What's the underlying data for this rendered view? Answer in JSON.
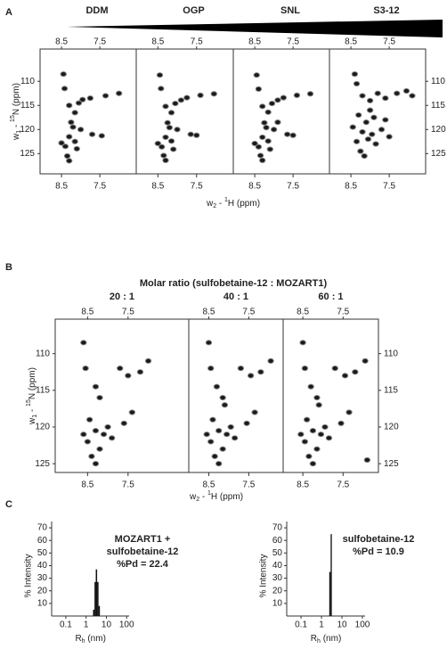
{
  "panels": {
    "a": {
      "label": "A",
      "x_label": [
        "w",
        "2",
        " - ",
        "1",
        "H (ppm)"
      ],
      "y_label": [
        "w",
        "1",
        " - ",
        "15",
        "N (ppm)"
      ]
    },
    "b": {
      "label": "B",
      "title": "Molar ratio (sulfobetaine-12 : MOZART1)",
      "x_label": [
        "w",
        "2",
        " - ",
        "1",
        "H (ppm)"
      ],
      "y_label": [
        "w",
        "1",
        " - ",
        "15",
        "N (ppm)"
      ]
    },
    "c": {
      "label": "C"
    }
  },
  "chart_data": [
    {
      "type": "scatter",
      "title": "DDM",
      "xlim": [
        9.06,
        6.55
      ],
      "ylim": [
        103.3,
        129.2
      ],
      "xticks": [
        8.5,
        7.5
      ],
      "yticks": [
        110,
        115,
        120,
        125
      ],
      "x": [
        8.45,
        8.42,
        8.3,
        8.15,
        8.05,
        7.75,
        7.95,
        7.35,
        7.0,
        8.25,
        8.0,
        8.3,
        8.15,
        7.45,
        7.7,
        8.4,
        8.1,
        8.3,
        8.35,
        8.5,
        8.2
      ],
      "y": [
        108.5,
        111.5,
        115,
        116.5,
        114.5,
        113.5,
        113.8,
        113,
        112.5,
        118.5,
        120,
        121.5,
        122.5,
        121.3,
        121,
        123.5,
        124,
        126.5,
        125.5,
        122.8,
        119.5
      ]
    },
    {
      "type": "scatter",
      "title": "OGP",
      "xlim": [
        9.06,
        6.55
      ],
      "ylim": [
        103.3,
        129.2
      ],
      "xticks": [
        8.5,
        7.5
      ],
      "x": [
        8.45,
        8.42,
        8.3,
        8.15,
        8.05,
        7.75,
        7.9,
        7.4,
        7.05,
        8.25,
        8.0,
        8.3,
        8.15,
        7.5,
        7.65,
        8.4,
        8.1,
        8.3,
        8.35,
        8.5,
        8.2
      ],
      "y": [
        108.7,
        111.5,
        115.2,
        116.5,
        114.6,
        113.4,
        113.9,
        112.9,
        112.6,
        118.6,
        120,
        121.6,
        122.4,
        121.2,
        121,
        123.6,
        124.1,
        126.4,
        125.4,
        122.9,
        119.6
      ]
    },
    {
      "type": "scatter",
      "title": "SNL",
      "xlim": [
        9.06,
        6.55
      ],
      "ylim": [
        103.3,
        129.2
      ],
      "xticks": [
        8.5,
        7.5
      ],
      "x": [
        8.45,
        8.4,
        8.3,
        8.15,
        8.05,
        7.75,
        7.9,
        7.4,
        7.05,
        8.25,
        8.0,
        8.3,
        8.15,
        7.5,
        7.65,
        8.4,
        8.1,
        8.3,
        8.35,
        8.5,
        8.2,
        7.9
      ],
      "y": [
        108.7,
        111.6,
        115.2,
        116.4,
        114.6,
        113.4,
        113.9,
        112.9,
        112.6,
        118.6,
        120,
        121.6,
        122.4,
        121.2,
        121,
        123.6,
        124.1,
        126.4,
        125.4,
        122.9,
        119.6,
        118.5
      ]
    },
    {
      "type": "scatter",
      "title": "S3-12",
      "xlim": [
        9.06,
        6.55
      ],
      "ylim": [
        103.3,
        129.2
      ],
      "xticks": [
        8.5,
        7.5
      ],
      "yticks": [
        110,
        115,
        120,
        125
      ],
      "x": [
        8.4,
        8.35,
        8.2,
        8.0,
        7.8,
        7.6,
        7.3,
        7.05,
        6.9,
        8.3,
        8.1,
        7.9,
        8.45,
        8.2,
        7.95,
        7.7,
        7.5,
        8.35,
        8.05,
        7.85,
        8.25,
        8.15,
        7.6,
        8.0
      ],
      "y": [
        108.5,
        110.5,
        113,
        114,
        112.5,
        113.5,
        112.5,
        112,
        113,
        117,
        118.5,
        117.5,
        119.5,
        120.5,
        121,
        120,
        121.5,
        122.5,
        122,
        123,
        124.5,
        125.5,
        118,
        116
      ]
    },
    {
      "type": "scatter",
      "title": "20 : 1",
      "xlim": [
        9.3,
        6.0
      ],
      "ylim": [
        105.3,
        126.2
      ],
      "xticks": [
        8.5,
        7.5
      ],
      "yticks": [
        110,
        115,
        120,
        125
      ],
      "x": [
        8.6,
        8.55,
        8.3,
        8.2,
        7.7,
        7.5,
        7.2,
        7.0,
        8.45,
        8.3,
        8.1,
        8.5,
        8.2,
        7.9,
        7.6,
        8.4,
        8.3,
        8.6,
        8.0,
        7.4
      ],
      "y": [
        108.5,
        112,
        114.5,
        116,
        112,
        113,
        112.5,
        111,
        119,
        120.5,
        121,
        122,
        123,
        121.5,
        119.5,
        124,
        125,
        121,
        120,
        118
      ]
    },
    {
      "type": "scatter",
      "title": "40 : 1",
      "xlim": [
        9.0,
        6.64
      ],
      "ylim": [
        105.3,
        126.2
      ],
      "xticks": [
        8.5,
        7.5
      ],
      "x": [
        8.5,
        8.45,
        8.3,
        8.15,
        7.7,
        7.45,
        7.2,
        6.95,
        8.4,
        8.25,
        8.05,
        8.45,
        8.15,
        7.85,
        7.55,
        8.35,
        8.25,
        8.55,
        7.95,
        7.35,
        8.1
      ],
      "y": [
        108.5,
        112,
        114.5,
        116,
        112,
        113,
        112.5,
        111,
        119,
        120.5,
        121,
        122,
        123,
        121.5,
        119.5,
        124,
        125,
        121,
        120,
        118,
        117
      ]
    },
    {
      "type": "scatter",
      "title": "60 : 1",
      "xlim": [
        8.99,
        6.62
      ],
      "ylim": [
        105.3,
        126.2
      ],
      "xticks": [
        8.5,
        7.5
      ],
      "yticks": [
        110,
        115,
        120,
        125
      ],
      "x": [
        8.5,
        8.45,
        8.3,
        8.15,
        7.7,
        7.45,
        7.2,
        6.95,
        8.4,
        8.25,
        8.05,
        8.45,
        8.15,
        7.85,
        7.55,
        8.35,
        8.25,
        8.55,
        7.95,
        7.35,
        8.1,
        6.9
      ],
      "y": [
        108.5,
        112,
        114.5,
        116,
        112,
        113,
        112.5,
        111,
        119,
        120.5,
        121,
        122,
        123,
        121.5,
        119.5,
        124,
        125,
        121,
        120,
        118,
        117,
        124.5
      ]
    },
    {
      "type": "histogram",
      "annotation": [
        "MOZART1 +",
        "sulfobetaine-12",
        "%Pd = 22.4"
      ],
      "color": "#111111",
      "x_label": [
        "R",
        "h",
        " (nm)"
      ],
      "y_label": "% Intensity",
      "log_x": true,
      "bins": [
        2.2,
        2.6,
        3.0,
        3.5,
        4.1,
        4.8
      ],
      "values": [
        5,
        27,
        37,
        27,
        8
      ],
      "xlim": [
        0.02,
        1000
      ],
      "ylim": [
        0,
        75
      ],
      "xticks": [
        0.1,
        1,
        10,
        100
      ],
      "yticks": [
        10,
        20,
        30,
        40,
        50,
        60,
        70
      ]
    },
    {
      "type": "histogram",
      "annotation": [
        "sulfobetaine-12",
        "%Pd = 10.9"
      ],
      "color": "#111111",
      "x_label": [
        "R",
        "h",
        " (nm)"
      ],
      "y_label": "% Intensity",
      "log_x": true,
      "bins": [
        2.4,
        2.8,
        3.2
      ],
      "values": [
        35,
        65
      ],
      "xlim": [
        0.02,
        1000
      ],
      "ylim": [
        0,
        75
      ],
      "xticks": [
        0.1,
        1,
        10,
        100
      ],
      "yticks": [
        10,
        20,
        30,
        40,
        50,
        60,
        70
      ]
    }
  ]
}
